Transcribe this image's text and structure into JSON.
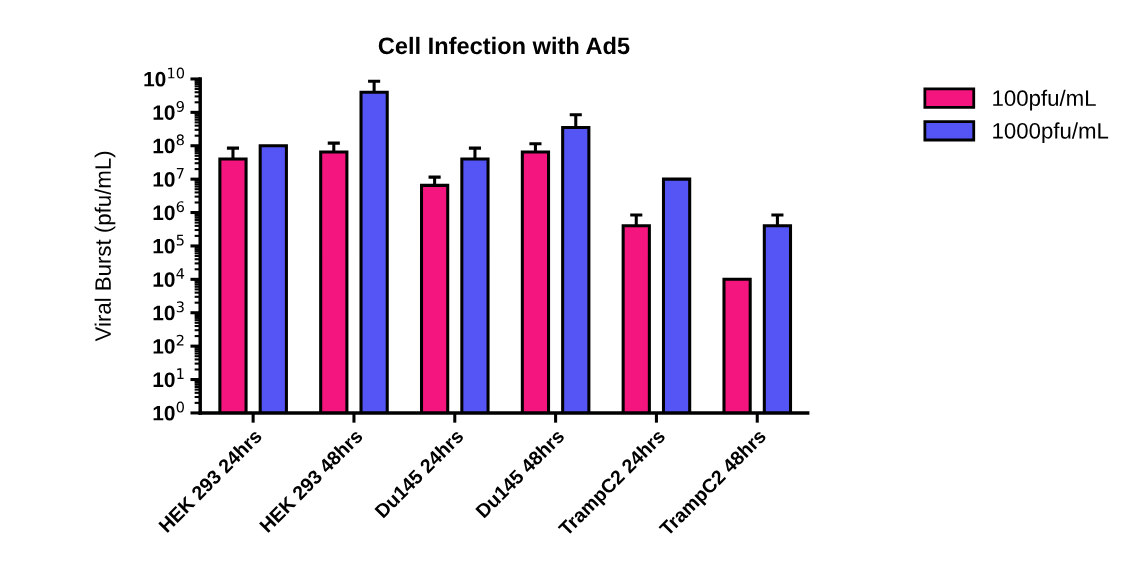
{
  "chart_data": {
    "type": "bar",
    "title": "Cell Infection with Ad5",
    "ylabel": "Viral Burst (pfu/mL)",
    "categories": [
      "HEK 293 24hrs",
      "HEK 293 48hrs",
      "Du145 24hrs",
      "Du145 48hrs",
      "TrampC2 24hrs",
      "TrampC2 48hrs"
    ],
    "series": [
      {
        "name": "100pfu/mL",
        "color": "#f5157e",
        "values": [
          40000000,
          65000000,
          6500000,
          65000000,
          400000,
          10000
        ],
        "errors": [
          [
            40000000,
            85000000
          ],
          [
            65000000,
            120000000
          ],
          [
            6500000,
            11500000
          ],
          [
            65000000,
            115000000
          ],
          [
            400000,
            850000
          ],
          null
        ]
      },
      {
        "name": "1000pfu/mL",
        "color": "#5555f5",
        "values": [
          100000000,
          4000000000,
          40000000,
          350000000,
          10000000,
          400000
        ],
        "errors": [
          null,
          [
            4000000000,
            8500000000
          ],
          [
            40000000,
            85000000
          ],
          [
            350000000,
            850000000
          ],
          null,
          [
            400000,
            850000
          ]
        ]
      }
    ],
    "log": "y",
    "ylim": [
      1,
      10000000000
    ],
    "yticks": [
      {
        "value": 1,
        "label": "10$^{0}$"
      },
      {
        "value": 10,
        "label": "10$^{1}$"
      },
      {
        "value": 100,
        "label": "10$^{2}$"
      },
      {
        "value": 1000,
        "label": "10$^{3}$"
      },
      {
        "value": 10000,
        "label": "10$^{4}$"
      },
      {
        "value": 100000,
        "label": "10$^{5}$"
      },
      {
        "value": 1000000,
        "label": "10$^{6}$"
      },
      {
        "value": 10000000,
        "label": "10$^{7}$"
      },
      {
        "value": 100000000,
        "label": "10$^{8}$"
      },
      {
        "value": 1000000000,
        "label": "10$^{9}$"
      },
      {
        "value": 10000000000,
        "label": "10$^{10}$"
      }
    ],
    "grid": false,
    "legend": "top right"
  }
}
